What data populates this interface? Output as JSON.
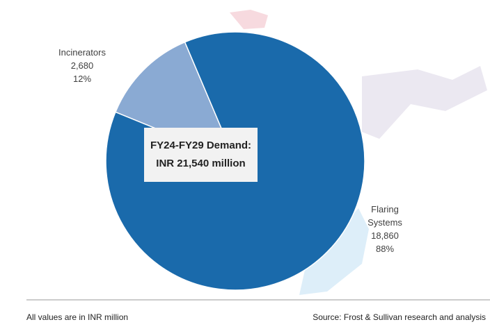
{
  "chart_data": {
    "type": "pie",
    "categories": [
      "Incinerators",
      "Flaring Systems"
    ],
    "values": [
      2680,
      18860
    ],
    "value_labels": [
      "2,680",
      "18,860"
    ],
    "percent_labels": [
      "12%",
      "88%"
    ],
    "colors": [
      "#8aaad3",
      "#1a6aab"
    ],
    "annotation": [
      "FY24-FY29 Demand:",
      "INR 21,540 million"
    ],
    "footnote": "All values are in INR million",
    "source": "Source: Frost & Sullivan research and analysis"
  }
}
